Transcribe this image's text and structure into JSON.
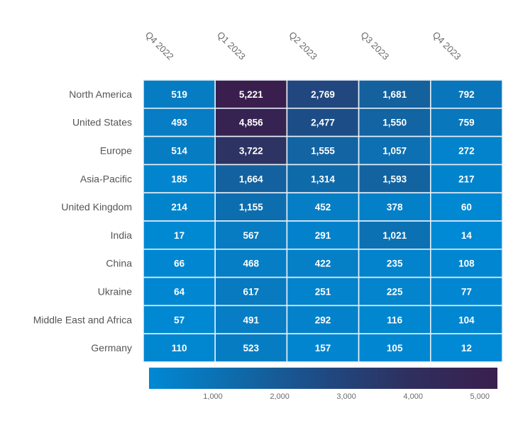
{
  "chart_data": {
    "type": "heatmap",
    "title": "",
    "xlabel": "",
    "ylabel": "",
    "columns": [
      "Q4 2022",
      "Q1 2023",
      "Q2 2023",
      "Q3 2023",
      "Q4 2023"
    ],
    "rows": [
      "North America",
      "United States",
      "Europe",
      "Asia-Pacific",
      "United Kingdom",
      "India",
      "China",
      "Ukraine",
      "Middle East and Africa",
      "Germany"
    ],
    "values": [
      [
        519,
        5221,
        2769,
        1681,
        792
      ],
      [
        493,
        4856,
        2477,
        1550,
        759
      ],
      [
        514,
        3722,
        1555,
        1057,
        272
      ],
      [
        185,
        1664,
        1314,
        1593,
        217
      ],
      [
        214,
        1155,
        452,
        378,
        60
      ],
      [
        17,
        567,
        291,
        1021,
        14
      ],
      [
        66,
        468,
        422,
        235,
        108
      ],
      [
        64,
        617,
        251,
        225,
        77
      ],
      [
        57,
        491,
        292,
        116,
        104
      ],
      [
        110,
        523,
        157,
        105,
        12
      ]
    ],
    "color_scale": {
      "min": 0,
      "max": 5221,
      "colors": [
        "#0089d4",
        "#0f6aaa",
        "#1f4a82",
        "#2f2f5e",
        "#3a1f4e"
      ],
      "ticks": [
        1000,
        2000,
        3000,
        4000,
        5000
      ],
      "tick_labels": [
        "1,000",
        "2,000",
        "3,000",
        "4,000",
        "5,000"
      ],
      "legend_position": "bottom"
    },
    "grid": true
  }
}
